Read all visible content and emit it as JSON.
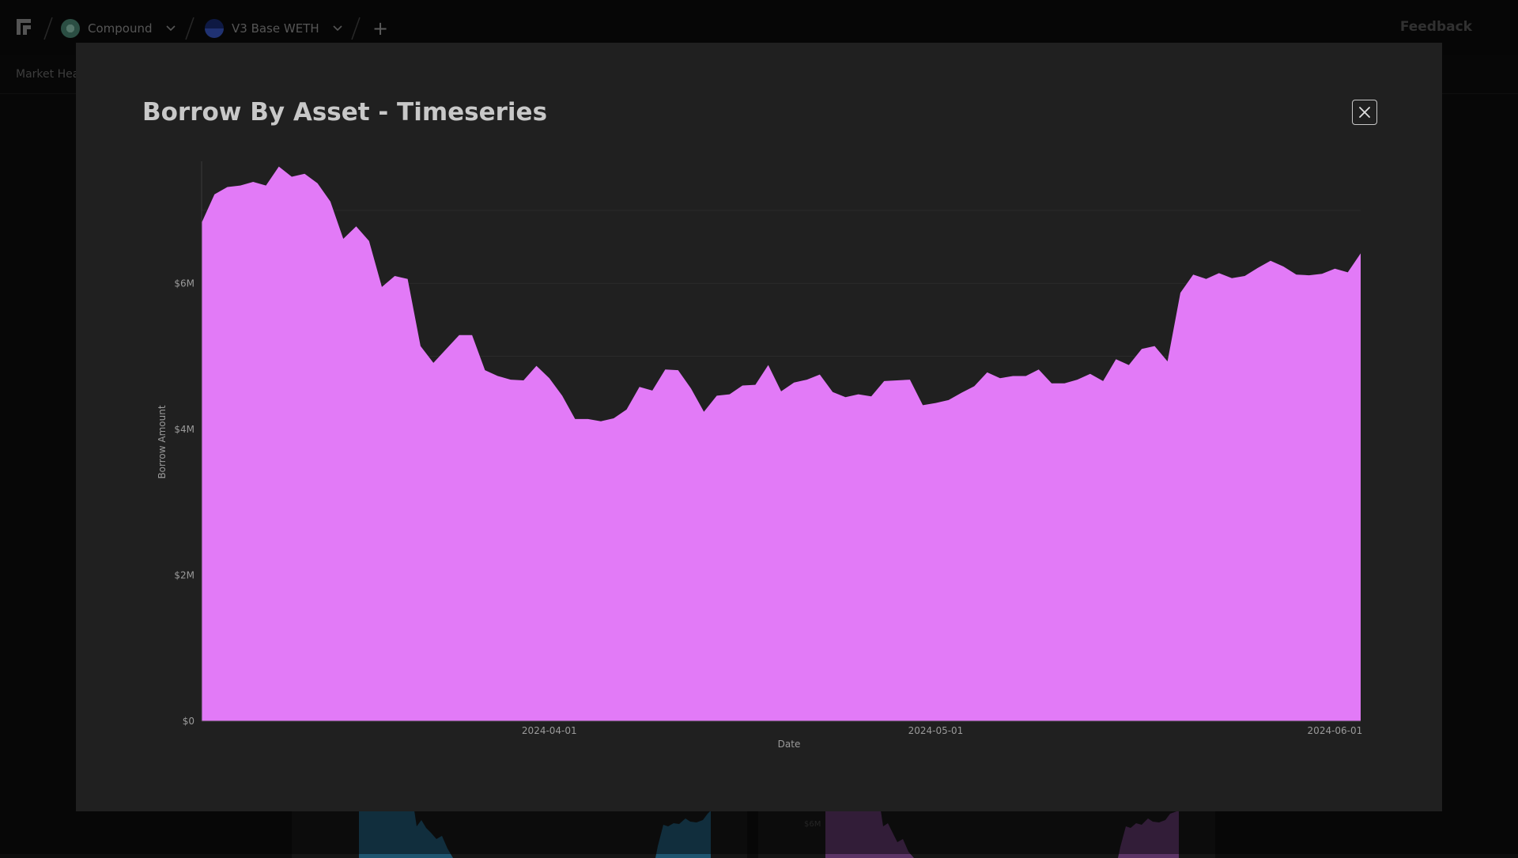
{
  "topbar": {
    "protocol": {
      "label": "Compound",
      "icon": "compound-logo-icon",
      "color": "#00d395"
    },
    "market": {
      "label": "V3 Base WETH",
      "icon": "base-network-icon",
      "color": "#2b4bb8"
    },
    "feedback_label": "Feedback"
  },
  "tabs": {
    "first_label": "Market Hea"
  },
  "modal": {
    "title": "Borrow By Asset - Timeseries"
  },
  "colors": {
    "area": "#e27af7",
    "background_card_left": "#1f5570",
    "background_card_right": "#5c3566"
  },
  "background_cards": {
    "right_tick": "$6M"
  },
  "chart_data": {
    "type": "area",
    "title": "Borrow By Asset - Timeseries",
    "xlabel": "Date",
    "ylabel": "Borrow Amount",
    "x_ticks": [
      "2024-04-01",
      "2024-05-01",
      "2024-06-01"
    ],
    "y_ticks": [
      "$0",
      "$2M",
      "$4M",
      "$6M"
    ],
    "ylim": [
      0,
      7650000
    ],
    "grid": true,
    "series": [
      {
        "color": "#e27af7",
        "points": [
          [
            "2024-03-05",
            6830000
          ],
          [
            "2024-03-06",
            7220000
          ],
          [
            "2024-03-07",
            7320000
          ],
          [
            "2024-03-08",
            7340000
          ],
          [
            "2024-03-09",
            7390000
          ],
          [
            "2024-03-10",
            7340000
          ],
          [
            "2024-03-11",
            7600000
          ],
          [
            "2024-03-12",
            7460000
          ],
          [
            "2024-03-13",
            7500000
          ],
          [
            "2024-03-14",
            7370000
          ],
          [
            "2024-03-15",
            7120000
          ],
          [
            "2024-03-16",
            6610000
          ],
          [
            "2024-03-17",
            6780000
          ],
          [
            "2024-03-18",
            6580000
          ],
          [
            "2024-03-19",
            5950000
          ],
          [
            "2024-03-20",
            6100000
          ],
          [
            "2024-03-21",
            6060000
          ],
          [
            "2024-03-22",
            5140000
          ],
          [
            "2024-03-23",
            4910000
          ],
          [
            "2024-03-24",
            5100000
          ],
          [
            "2024-03-25",
            5290000
          ],
          [
            "2024-03-26",
            5290000
          ],
          [
            "2024-03-27",
            4810000
          ],
          [
            "2024-03-28",
            4730000
          ],
          [
            "2024-03-29",
            4680000
          ],
          [
            "2024-03-30",
            4670000
          ],
          [
            "2024-03-31",
            4870000
          ],
          [
            "2024-04-01",
            4700000
          ],
          [
            "2024-04-02",
            4460000
          ],
          [
            "2024-04-03",
            4140000
          ],
          [
            "2024-04-04",
            4140000
          ],
          [
            "2024-04-05",
            4110000
          ],
          [
            "2024-04-06",
            4150000
          ],
          [
            "2024-04-07",
            4270000
          ],
          [
            "2024-04-08",
            4580000
          ],
          [
            "2024-04-09",
            4530000
          ],
          [
            "2024-04-10",
            4820000
          ],
          [
            "2024-04-11",
            4810000
          ],
          [
            "2024-04-12",
            4560000
          ],
          [
            "2024-04-13",
            4240000
          ],
          [
            "2024-04-14",
            4460000
          ],
          [
            "2024-04-15",
            4480000
          ],
          [
            "2024-04-16",
            4600000
          ],
          [
            "2024-04-17",
            4610000
          ],
          [
            "2024-04-18",
            4880000
          ],
          [
            "2024-04-19",
            4520000
          ],
          [
            "2024-04-20",
            4640000
          ],
          [
            "2024-04-21",
            4680000
          ],
          [
            "2024-04-22",
            4750000
          ],
          [
            "2024-04-23",
            4510000
          ],
          [
            "2024-04-24",
            4440000
          ],
          [
            "2024-04-25",
            4480000
          ],
          [
            "2024-04-26",
            4450000
          ],
          [
            "2024-04-27",
            4660000
          ],
          [
            "2024-04-28",
            4670000
          ],
          [
            "2024-04-29",
            4680000
          ],
          [
            "2024-04-30",
            4330000
          ],
          [
            "2024-05-01",
            4360000
          ],
          [
            "2024-05-02",
            4400000
          ],
          [
            "2024-05-03",
            4500000
          ],
          [
            "2024-05-04",
            4590000
          ],
          [
            "2024-05-05",
            4780000
          ],
          [
            "2024-05-06",
            4700000
          ],
          [
            "2024-05-07",
            4730000
          ],
          [
            "2024-05-08",
            4730000
          ],
          [
            "2024-05-09",
            4820000
          ],
          [
            "2024-05-10",
            4630000
          ],
          [
            "2024-05-11",
            4630000
          ],
          [
            "2024-05-12",
            4680000
          ],
          [
            "2024-05-13",
            4760000
          ],
          [
            "2024-05-14",
            4660000
          ],
          [
            "2024-05-15",
            4960000
          ],
          [
            "2024-05-16",
            4880000
          ],
          [
            "2024-05-17",
            5100000
          ],
          [
            "2024-05-18",
            5140000
          ],
          [
            "2024-05-19",
            4930000
          ],
          [
            "2024-05-20",
            5870000
          ],
          [
            "2024-05-21",
            6120000
          ],
          [
            "2024-05-22",
            6060000
          ],
          [
            "2024-05-23",
            6140000
          ],
          [
            "2024-05-24",
            6070000
          ],
          [
            "2024-05-25",
            6100000
          ],
          [
            "2024-05-26",
            6210000
          ],
          [
            "2024-05-27",
            6310000
          ],
          [
            "2024-05-28",
            6230000
          ],
          [
            "2024-05-29",
            6120000
          ],
          [
            "2024-05-30",
            6110000
          ],
          [
            "2024-05-31",
            6130000
          ],
          [
            "2024-06-01",
            6200000
          ],
          [
            "2024-06-02",
            6150000
          ],
          [
            "2024-06-03",
            6410000
          ]
        ]
      }
    ]
  }
}
